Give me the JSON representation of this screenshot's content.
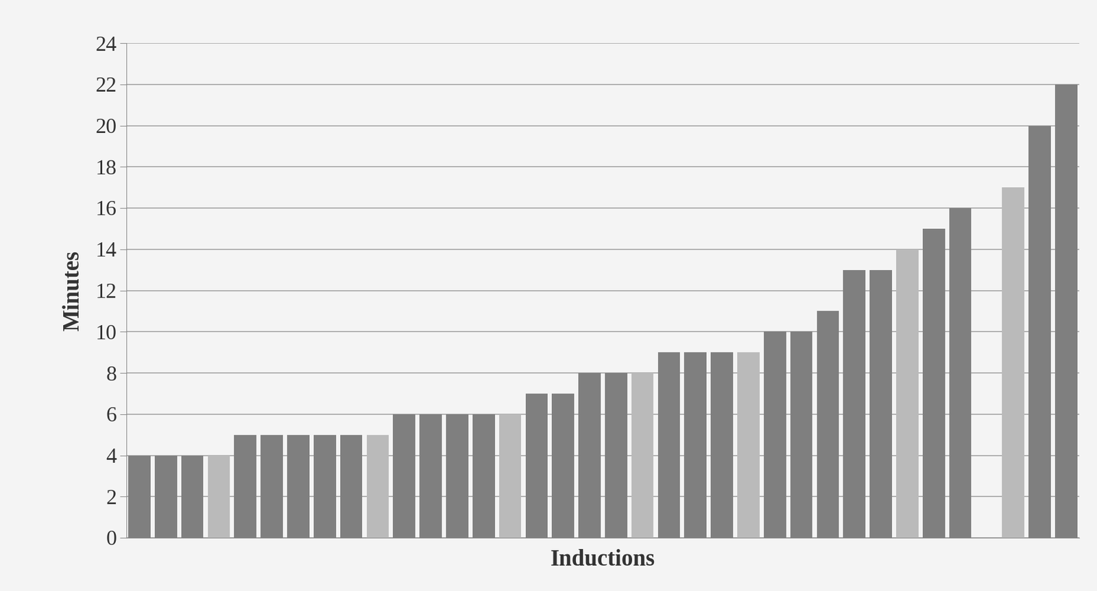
{
  "chart_data": {
    "type": "bar",
    "x_label": "Inductions",
    "y_label": "Minutes",
    "categories": [
      null,
      null,
      null,
      null,
      null,
      null,
      null,
      null,
      null,
      null,
      null,
      null,
      null,
      null,
      null,
      null,
      null,
      null,
      null,
      null,
      null,
      null,
      null,
      null,
      null,
      null,
      null,
      null,
      null,
      null,
      null,
      null,
      null,
      null,
      null,
      null
    ],
    "values": [
      4,
      4,
      4,
      4,
      5,
      5,
      5,
      5,
      5,
      5,
      6,
      6,
      6,
      6,
      6,
      7,
      7,
      8,
      8,
      8,
      9,
      9,
      9,
      9,
      10,
      10,
      11,
      13,
      13,
      14,
      15,
      16,
      0,
      17,
      20,
      22
    ],
    "colors": [
      "#7f7f7f",
      "#7f7f7f",
      "#7f7f7f",
      "#bababa",
      "#7f7f7f",
      "#7f7f7f",
      "#7f7f7f",
      "#7f7f7f",
      "#7f7f7f",
      "#bababa",
      "#7f7f7f",
      "#7f7f7f",
      "#7f7f7f",
      "#7f7f7f",
      "#bababa",
      "#7f7f7f",
      "#7f7f7f",
      "#7f7f7f",
      "#7f7f7f",
      "#bababa",
      "#7f7f7f",
      "#7f7f7f",
      "#7f7f7f",
      "#bababa",
      "#7f7f7f",
      "#7f7f7f",
      "#7f7f7f",
      "#7f7f7f",
      "#7f7f7f",
      "#bababa",
      "#7f7f7f",
      "#7f7f7f",
      "#7f7f7f",
      "#bababa",
      "#7f7f7f",
      "#7f7f7f"
    ],
    "ylim": [
      0,
      24
    ],
    "yticks": [
      0,
      2,
      4,
      6,
      8,
      10,
      12,
      14,
      16,
      18,
      20,
      22,
      24
    ],
    "grid": true,
    "tick_labels": "y"
  }
}
